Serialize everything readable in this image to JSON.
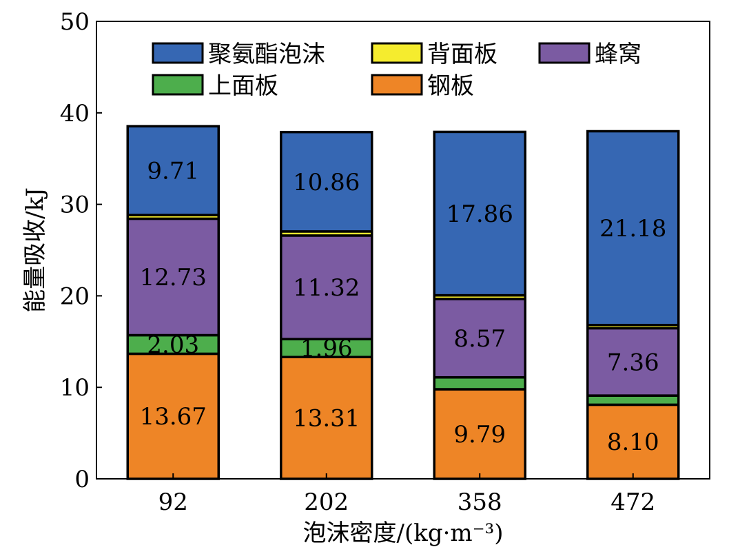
{
  "chart_data": {
    "type": "bar",
    "stacked": true,
    "categories": [
      "92",
      "202",
      "358",
      "472"
    ],
    "xlabel": "泡沫密度/(kg·m⁻³)",
    "ylabel": "能量吸收/kJ",
    "ylim": [
      0,
      50
    ],
    "yticks": [
      "0",
      "10",
      "20",
      "30",
      "40",
      "50"
    ],
    "grid": false,
    "legend_position": "top",
    "series": [
      {
        "name": "钢板",
        "color": "#EE8526",
        "values": [
          13.67,
          13.31,
          9.79,
          8.1
        ],
        "labels": [
          "13.67",
          "13.31",
          "9.79",
          "8.10"
        ]
      },
      {
        "name": "上面板",
        "color": "#4DAE4C",
        "values": [
          2.03,
          1.96,
          1.3,
          1.0
        ],
        "labels": [
          "2.03",
          "1.96",
          "",
          ""
        ]
      },
      {
        "name": "蜂窝",
        "color": "#7B5BA2",
        "values": [
          12.73,
          11.32,
          8.57,
          7.36
        ],
        "labels": [
          "12.73",
          "11.32",
          "8.57",
          "7.36"
        ]
      },
      {
        "name": "背面板",
        "color": "#F5EC2E",
        "values": [
          0.4,
          0.45,
          0.4,
          0.35
        ],
        "labels": [
          "",
          "",
          "",
          ""
        ]
      },
      {
        "name": "聚氨酯泡沫",
        "color": "#3667B3",
        "values": [
          9.71,
          10.86,
          17.86,
          21.18
        ],
        "labels": [
          "9.71",
          "10.86",
          "17.86",
          "21.18"
        ]
      }
    ],
    "legend_order": [
      "聚氨酯泡沫",
      "背面板",
      "蜂窝",
      "上面板",
      "钢板"
    ]
  }
}
